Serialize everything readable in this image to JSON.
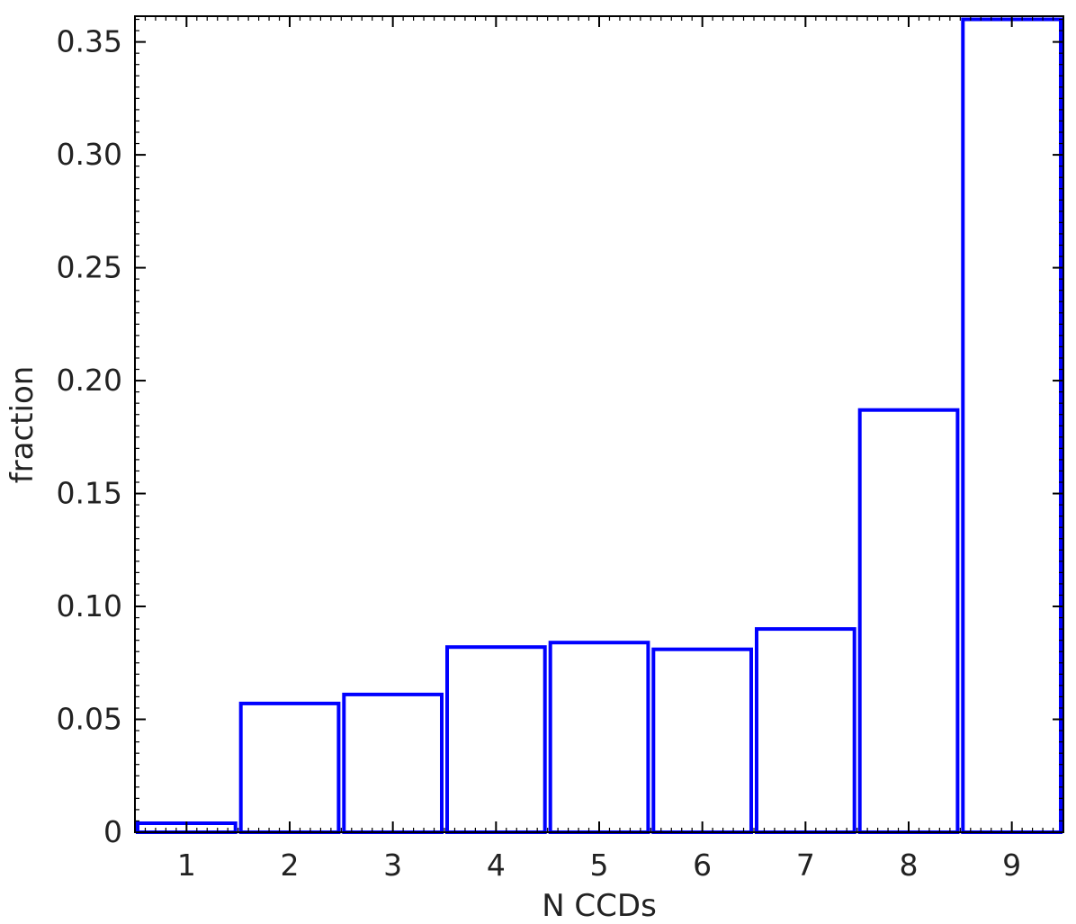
{
  "chart_data": {
    "type": "bar",
    "style": "histogram-outline",
    "categories": [
      "1",
      "2",
      "3",
      "4",
      "5",
      "6",
      "7",
      "8",
      "9"
    ],
    "values": [
      0.004,
      0.057,
      0.061,
      0.082,
      0.084,
      0.081,
      0.09,
      0.187,
      0.36
    ],
    "xlabel": "N CCDs",
    "ylabel": "fraction",
    "xlim": [
      0.5,
      9.5
    ],
    "ylim": [
      0,
      0.35
    ],
    "yticks": [
      "0",
      "0.05",
      "0.10",
      "0.15",
      "0.20",
      "0.25",
      "0.30",
      "0.35"
    ],
    "ytick_values": [
      0,
      0.05,
      0.1,
      0.15,
      0.2,
      0.25,
      0.3,
      0.35
    ],
    "grid": false,
    "bar_color": "#0000ff",
    "axis_color": "#000000"
  }
}
